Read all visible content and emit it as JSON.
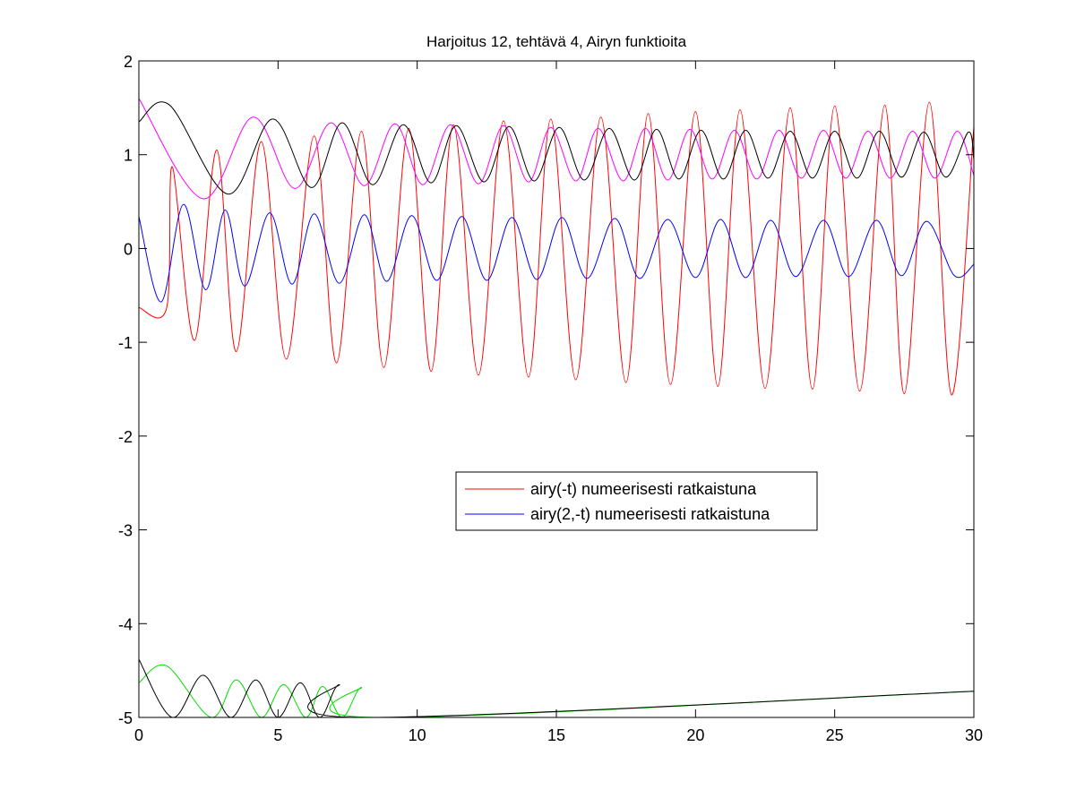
{
  "chart_data": {
    "type": "line",
    "title": "Harjoitus 12, tehtävä 4, Airyn funktioita",
    "xlabel": "",
    "ylabel": "",
    "xlim": [
      0,
      30
    ],
    "ylim": [
      -5,
      2
    ],
    "xticks": [
      0,
      5,
      10,
      15,
      20,
      25,
      30
    ],
    "yticks": [
      -5,
      -4,
      -3,
      -2,
      -1,
      0,
      1,
      2
    ],
    "grid": false,
    "legend_position": "center-right",
    "legend": [
      {
        "label": "airy(-t) numeerisesti ratkaistuna",
        "color": "#ff0000"
      },
      {
        "label": "airy(2,-t) numeerisesti ratkaistuna",
        "color": "#0000ff"
      }
    ],
    "series": [
      {
        "name": "airy(-t) numeerisesti ratkaistuna",
        "color": "#ff0000",
        "description_points": [
          [
            0,
            -0.63
          ],
          [
            1.0,
            -0.63
          ],
          [
            1.2,
            0.87
          ],
          [
            2.0,
            -0.98
          ],
          [
            2.8,
            1.05
          ],
          [
            3.5,
            -1.1
          ],
          [
            4.4,
            1.14
          ],
          [
            5.3,
            -1.18
          ],
          [
            6.3,
            1.2
          ],
          [
            7.1,
            -1.22
          ],
          [
            8.0,
            1.25
          ],
          [
            8.8,
            -1.27
          ],
          [
            9.7,
            1.28
          ],
          [
            10.5,
            -1.31
          ],
          [
            11.3,
            1.32
          ],
          [
            12.2,
            -1.35
          ],
          [
            13.1,
            1.36
          ],
          [
            14.0,
            -1.37
          ],
          [
            14.8,
            1.38
          ],
          [
            15.7,
            -1.4
          ],
          [
            16.6,
            1.4
          ],
          [
            17.5,
            -1.43
          ],
          [
            18.3,
            1.44
          ],
          [
            19.1,
            -1.45
          ],
          [
            20.0,
            1.46
          ],
          [
            20.8,
            -1.47
          ],
          [
            21.6,
            1.48
          ],
          [
            22.5,
            -1.49
          ],
          [
            23.4,
            1.5
          ],
          [
            24.2,
            -1.5
          ],
          [
            25.0,
            1.52
          ],
          [
            25.9,
            -1.52
          ],
          [
            26.8,
            1.53
          ],
          [
            27.5,
            -1.55
          ],
          [
            28.4,
            1.56
          ],
          [
            29.2,
            -1.56
          ],
          [
            30,
            1.3
          ]
        ]
      },
      {
        "name": "airy(2,-t) numeerisesti ratkaistuna",
        "color": "#0000ff",
        "description_points": [
          [
            0,
            0.34
          ],
          [
            0.8,
            -0.57
          ],
          [
            1.6,
            0.47
          ],
          [
            2.4,
            -0.44
          ],
          [
            3.1,
            0.41
          ],
          [
            3.8,
            -0.4
          ],
          [
            4.7,
            0.38
          ],
          [
            5.5,
            -0.38
          ],
          [
            6.3,
            0.37
          ],
          [
            7.2,
            -0.37
          ],
          [
            8.1,
            0.36
          ],
          [
            8.9,
            -0.35
          ],
          [
            9.8,
            0.35
          ],
          [
            10.7,
            -0.34
          ],
          [
            11.6,
            0.34
          ],
          [
            12.5,
            -0.34
          ],
          [
            13.4,
            0.33
          ],
          [
            14.3,
            -0.33
          ],
          [
            15.2,
            0.33
          ],
          [
            16.1,
            -0.32
          ],
          [
            17.1,
            0.32
          ],
          [
            18.0,
            -0.32
          ],
          [
            19.0,
            0.31
          ],
          [
            20.0,
            -0.31
          ],
          [
            20.9,
            0.31
          ],
          [
            21.8,
            -0.31
          ],
          [
            22.7,
            0.3
          ],
          [
            23.6,
            -0.3
          ],
          [
            24.6,
            0.3
          ],
          [
            25.5,
            -0.3
          ],
          [
            26.5,
            0.3
          ],
          [
            27.4,
            -0.29
          ],
          [
            28.3,
            0.29
          ],
          [
            29.3,
            -0.29
          ],
          [
            30,
            -0.17
          ]
        ]
      },
      {
        "color": "#ff00ff",
        "description_points": [
          [
            0,
            1.6
          ],
          [
            2.3,
            0.53
          ],
          [
            4.1,
            1.4
          ],
          [
            5.6,
            0.64
          ],
          [
            6.9,
            1.34
          ],
          [
            8.1,
            0.67
          ],
          [
            9.2,
            1.33
          ],
          [
            10.2,
            0.68
          ],
          [
            11.2,
            1.32
          ],
          [
            12.2,
            0.69
          ],
          [
            13.1,
            1.31
          ],
          [
            14.0,
            0.71
          ],
          [
            14.8,
            1.29
          ],
          [
            15.7,
            0.72
          ],
          [
            16.5,
            1.28
          ],
          [
            17.4,
            0.72
          ],
          [
            18.2,
            1.28
          ],
          [
            19.0,
            0.73
          ],
          [
            19.8,
            1.27
          ],
          [
            20.6,
            0.74
          ],
          [
            21.4,
            1.26
          ],
          [
            22.2,
            0.74
          ],
          [
            23.0,
            1.26
          ],
          [
            23.8,
            0.75
          ],
          [
            24.6,
            1.26
          ],
          [
            25.4,
            0.75
          ],
          [
            26.2,
            1.25
          ],
          [
            27.0,
            0.75
          ],
          [
            27.8,
            1.25
          ],
          [
            28.6,
            0.75
          ],
          [
            29.4,
            1.25
          ],
          [
            30,
            0.78
          ]
        ]
      },
      {
        "color": "#000000",
        "description_points": [
          [
            0,
            1.35
          ],
          [
            1.1,
            1.53
          ],
          [
            3.2,
            0.58
          ],
          [
            4.8,
            1.38
          ],
          [
            6.2,
            0.65
          ],
          [
            7.3,
            1.34
          ],
          [
            8.4,
            0.68
          ],
          [
            9.5,
            1.32
          ],
          [
            10.5,
            0.7
          ],
          [
            11.4,
            1.31
          ],
          [
            12.4,
            0.71
          ],
          [
            13.3,
            1.3
          ],
          [
            14.2,
            0.72
          ],
          [
            15.1,
            1.29
          ],
          [
            16.0,
            0.73
          ],
          [
            16.9,
            1.28
          ],
          [
            17.8,
            0.73
          ],
          [
            18.6,
            1.27
          ],
          [
            19.4,
            0.74
          ],
          [
            20.2,
            1.26
          ],
          [
            21.0,
            0.74
          ],
          [
            21.8,
            1.26
          ],
          [
            22.6,
            0.75
          ],
          [
            23.4,
            1.25
          ],
          [
            24.2,
            0.75
          ],
          [
            25.0,
            1.25
          ],
          [
            25.8,
            0.75
          ],
          [
            26.6,
            1.25
          ],
          [
            27.4,
            0.76
          ],
          [
            28.2,
            1.24
          ],
          [
            29.0,
            0.76
          ],
          [
            29.8,
            1.24
          ],
          [
            30,
            0.95
          ]
        ]
      },
      {
        "color": "#00dd00",
        "description_points": [
          [
            0,
            -4.63
          ],
          [
            1.0,
            -4.45
          ],
          [
            2.6,
            -5.0
          ],
          [
            3.5,
            -4.6
          ],
          [
            4.4,
            -5.0
          ],
          [
            5.2,
            -4.65
          ],
          [
            6.0,
            -5.0
          ],
          [
            6.6,
            -4.67
          ],
          [
            7.3,
            -5.0
          ],
          [
            8.0,
            -4.68
          ],
          [
            8.6,
            -5.0
          ],
          [
            30,
            -4.72
          ]
        ]
      },
      {
        "color": "#000000",
        "description_points": [
          [
            0,
            -4.38
          ],
          [
            1.2,
            -5.0
          ],
          [
            2.3,
            -4.55
          ],
          [
            3.3,
            -5.0
          ],
          [
            4.2,
            -4.6
          ],
          [
            5.0,
            -5.0
          ],
          [
            5.8,
            -4.63
          ],
          [
            6.5,
            -5.0
          ],
          [
            7.2,
            -4.65
          ],
          [
            7.9,
            -5.0
          ],
          [
            30,
            -4.72
          ]
        ]
      }
    ]
  }
}
